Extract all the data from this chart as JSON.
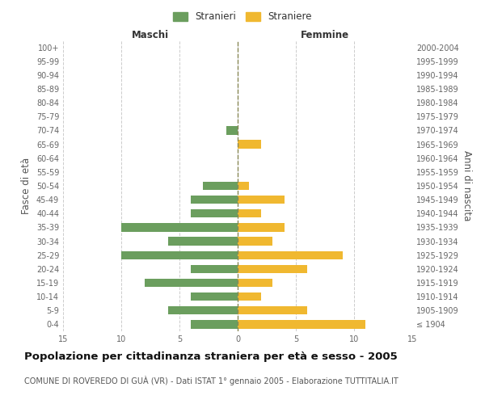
{
  "age_groups": [
    "100+",
    "95-99",
    "90-94",
    "85-89",
    "80-84",
    "75-79",
    "70-74",
    "65-69",
    "60-64",
    "55-59",
    "50-54",
    "45-49",
    "40-44",
    "35-39",
    "30-34",
    "25-29",
    "20-24",
    "15-19",
    "10-14",
    "5-9",
    "0-4"
  ],
  "birth_years": [
    "≤ 1904",
    "1905-1909",
    "1910-1914",
    "1915-1919",
    "1920-1924",
    "1925-1929",
    "1930-1934",
    "1935-1939",
    "1940-1944",
    "1945-1949",
    "1950-1954",
    "1955-1959",
    "1960-1964",
    "1965-1969",
    "1970-1974",
    "1975-1979",
    "1980-1984",
    "1985-1989",
    "1990-1994",
    "1995-1999",
    "2000-2004"
  ],
  "maschi": [
    0,
    0,
    0,
    0,
    0,
    0,
    1,
    0,
    0,
    0,
    3,
    4,
    4,
    10,
    6,
    10,
    4,
    8,
    4,
    6,
    4
  ],
  "femmine": [
    0,
    0,
    0,
    0,
    0,
    0,
    0,
    2,
    0,
    0,
    1,
    4,
    2,
    4,
    3,
    9,
    6,
    3,
    2,
    6,
    11
  ],
  "color_maschi": "#6b9e5e",
  "color_femmine": "#f0b830",
  "bg_color": "#ffffff",
  "grid_color": "#cccccc",
  "title": "Popolazione per cittadinanza straniera per età e sesso - 2005",
  "subtitle": "COMUNE DI ROVEREDO DI GUÀ (VR) - Dati ISTAT 1° gennaio 2005 - Elaborazione TUTTITALIA.IT",
  "xlabel_left": "Maschi",
  "xlabel_right": "Femmine",
  "ylabel_left": "Fasce di età",
  "ylabel_right": "Anni di nascita",
  "legend_maschi": "Stranieri",
  "legend_femmine": "Straniere",
  "xlim": 15,
  "title_fontsize": 9.5,
  "subtitle_fontsize": 7,
  "label_fontsize": 8.5,
  "tick_fontsize": 7
}
